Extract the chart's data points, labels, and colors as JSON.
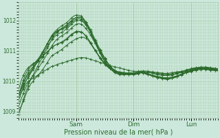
{
  "xlabel": "Pression niveau de la mer( hPa )",
  "bg_color": "#cce8dc",
  "plot_bg_color": "#cce8dc",
  "grid_color": "#aaccaa",
  "line_color": "#2d6b2d",
  "ylim": [
    1008.8,
    1012.6
  ],
  "yticks": [
    1009,
    1010,
    1011,
    1012
  ],
  "x_day_labels": [
    {
      "label": "Sam",
      "x": 24
    },
    {
      "label": "Dim",
      "x": 48
    },
    {
      "label": "Lun",
      "x": 72
    }
  ],
  "n_points": 84,
  "series": [
    [
      1009.5,
      1009.6,
      1009.75,
      1009.9,
      1010.0,
      1010.05,
      1010.1,
      1010.15,
      1010.2,
      1010.25,
      1010.3,
      1010.35,
      1010.4,
      1010.45,
      1010.5,
      1010.52,
      1010.55,
      1010.58,
      1010.6,
      1010.62,
      1010.65,
      1010.68,
      1010.7,
      1010.72,
      1010.75,
      1010.77,
      1010.78,
      1010.78,
      1010.77,
      1010.75,
      1010.73,
      1010.7,
      1010.67,
      1010.65,
      1010.62,
      1010.6,
      1010.58,
      1010.55,
      1010.52,
      1010.5,
      1010.48,
      1010.46,
      1010.44,
      1010.42,
      1010.4,
      1010.38,
      1010.36,
      1010.34,
      1010.33,
      1010.33,
      1010.33,
      1010.34,
      1010.34,
      1010.34,
      1010.33,
      1010.32,
      1010.31,
      1010.3,
      1010.29,
      1010.28,
      1010.27,
      1010.26,
      1010.26,
      1010.27,
      1010.28,
      1010.3,
      1010.31,
      1010.32,
      1010.33,
      1010.35,
      1010.38,
      1010.4,
      1010.42,
      1010.44,
      1010.45,
      1010.46,
      1010.47,
      1010.47,
      1010.47,
      1010.46,
      1010.45,
      1010.44,
      1010.43,
      1010.42
    ],
    [
      1009.0,
      1009.15,
      1009.35,
      1009.55,
      1009.75,
      1009.9,
      1010.0,
      1010.1,
      1010.18,
      1010.28,
      1010.38,
      1010.5,
      1010.62,
      1010.75,
      1010.85,
      1010.9,
      1010.95,
      1011.0,
      1011.05,
      1011.12,
      1011.18,
      1011.25,
      1011.3,
      1011.35,
      1011.4,
      1011.43,
      1011.45,
      1011.45,
      1011.42,
      1011.35,
      1011.25,
      1011.12,
      1011.0,
      1010.88,
      1010.75,
      1010.65,
      1010.55,
      1010.48,
      1010.42,
      1010.38,
      1010.35,
      1010.33,
      1010.31,
      1010.3,
      1010.29,
      1010.28,
      1010.28,
      1010.28,
      1010.28,
      1010.29,
      1010.3,
      1010.31,
      1010.31,
      1010.31,
      1010.3,
      1010.29,
      1010.28,
      1010.27,
      1010.26,
      1010.25,
      1010.24,
      1010.23,
      1010.23,
      1010.24,
      1010.25,
      1010.27,
      1010.28,
      1010.3,
      1010.31,
      1010.33,
      1010.36,
      1010.38,
      1010.4,
      1010.42,
      1010.43,
      1010.44,
      1010.45,
      1010.45,
      1010.45,
      1010.44,
      1010.43,
      1010.42,
      1010.41,
      1010.4
    ],
    [
      1009.5,
      1009.8,
      1010.05,
      1010.25,
      1010.38,
      1010.48,
      1010.55,
      1010.62,
      1010.68,
      1010.75,
      1010.82,
      1010.9,
      1010.98,
      1011.05,
      1011.12,
      1011.18,
      1011.22,
      1011.25,
      1011.28,
      1011.32,
      1011.38,
      1011.45,
      1011.52,
      1011.58,
      1011.62,
      1011.63,
      1011.62,
      1011.58,
      1011.5,
      1011.4,
      1011.28,
      1011.15,
      1011.02,
      1010.9,
      1010.78,
      1010.68,
      1010.58,
      1010.5,
      1010.44,
      1010.38,
      1010.34,
      1010.31,
      1010.29,
      1010.28,
      1010.28,
      1010.28,
      1010.28,
      1010.28,
      1010.28,
      1010.29,
      1010.3,
      1010.31,
      1010.31,
      1010.31,
      1010.3,
      1010.29,
      1010.27,
      1010.25,
      1010.23,
      1010.22,
      1010.21,
      1010.2,
      1010.2,
      1010.21,
      1010.22,
      1010.24,
      1010.26,
      1010.28,
      1010.3,
      1010.32,
      1010.35,
      1010.37,
      1010.39,
      1010.41,
      1010.42,
      1010.43,
      1010.44,
      1010.44,
      1010.44,
      1010.43,
      1010.42,
      1010.41,
      1010.4,
      1010.39
    ],
    [
      1009.7,
      1010.0,
      1010.2,
      1010.35,
      1010.45,
      1010.52,
      1010.58,
      1010.64,
      1010.7,
      1010.76,
      1010.83,
      1010.9,
      1010.97,
      1011.05,
      1011.12,
      1011.18,
      1011.22,
      1011.26,
      1011.3,
      1011.35,
      1011.4,
      1011.48,
      1011.55,
      1011.6,
      1011.65,
      1011.65,
      1011.63,
      1011.58,
      1011.5,
      1011.4,
      1011.27,
      1011.14,
      1011.02,
      1010.9,
      1010.78,
      1010.68,
      1010.58,
      1010.5,
      1010.44,
      1010.38,
      1010.34,
      1010.31,
      1010.29,
      1010.27,
      1010.27,
      1010.27,
      1010.27,
      1010.27,
      1010.28,
      1010.29,
      1010.3,
      1010.31,
      1010.3,
      1010.3,
      1010.29,
      1010.28,
      1010.26,
      1010.24,
      1010.22,
      1010.21,
      1010.2,
      1010.19,
      1010.19,
      1010.2,
      1010.21,
      1010.23,
      1010.25,
      1010.27,
      1010.29,
      1010.32,
      1010.34,
      1010.36,
      1010.38,
      1010.4,
      1010.41,
      1010.42,
      1010.43,
      1010.43,
      1010.43,
      1010.42,
      1010.41,
      1010.4,
      1010.39,
      1010.38
    ],
    [
      1009.35,
      1009.6,
      1009.8,
      1010.0,
      1010.15,
      1010.3,
      1010.42,
      1010.55,
      1010.68,
      1010.8,
      1010.95,
      1011.1,
      1011.25,
      1011.38,
      1011.5,
      1011.6,
      1011.65,
      1011.7,
      1011.72,
      1011.75,
      1011.78,
      1011.85,
      1011.93,
      1012.0,
      1012.05,
      1012.08,
      1012.05,
      1011.98,
      1011.88,
      1011.75,
      1011.6,
      1011.42,
      1011.25,
      1011.08,
      1010.92,
      1010.78,
      1010.65,
      1010.55,
      1010.46,
      1010.38,
      1010.32,
      1010.28,
      1010.26,
      1010.25,
      1010.25,
      1010.25,
      1010.25,
      1010.25,
      1010.25,
      1010.26,
      1010.28,
      1010.3,
      1010.28,
      1010.26,
      1010.24,
      1010.22,
      1010.2,
      1010.18,
      1010.16,
      1010.15,
      1010.13,
      1010.12,
      1010.12,
      1010.13,
      1010.14,
      1010.16,
      1010.18,
      1010.21,
      1010.24,
      1010.27,
      1010.3,
      1010.32,
      1010.34,
      1010.37,
      1010.38,
      1010.4,
      1010.41,
      1010.41,
      1010.41,
      1010.4,
      1010.39,
      1010.38,
      1010.37,
      1010.36
    ],
    [
      1008.9,
      1009.15,
      1009.4,
      1009.65,
      1009.85,
      1010.05,
      1010.2,
      1010.35,
      1010.5,
      1010.65,
      1010.8,
      1010.95,
      1011.1,
      1011.25,
      1011.4,
      1011.52,
      1011.6,
      1011.67,
      1011.72,
      1011.77,
      1011.82,
      1011.9,
      1011.98,
      1012.05,
      1012.1,
      1012.12,
      1012.1,
      1012.03,
      1011.92,
      1011.78,
      1011.62,
      1011.45,
      1011.28,
      1011.1,
      1010.93,
      1010.78,
      1010.63,
      1010.52,
      1010.43,
      1010.36,
      1010.3,
      1010.26,
      1010.24,
      1010.23,
      1010.23,
      1010.23,
      1010.23,
      1010.23,
      1010.23,
      1010.24,
      1010.26,
      1010.28,
      1010.27,
      1010.25,
      1010.23,
      1010.21,
      1010.18,
      1010.16,
      1010.14,
      1010.13,
      1010.11,
      1010.1,
      1010.1,
      1010.11,
      1010.12,
      1010.14,
      1010.16,
      1010.19,
      1010.22,
      1010.26,
      1010.29,
      1010.31,
      1010.33,
      1010.36,
      1010.37,
      1010.39,
      1010.4,
      1010.4,
      1010.4,
      1010.39,
      1010.38,
      1010.37,
      1010.36,
      1010.35
    ],
    [
      1009.5,
      1009.7,
      1009.85,
      1010.0,
      1010.12,
      1010.25,
      1010.38,
      1010.52,
      1010.65,
      1010.8,
      1010.95,
      1011.1,
      1011.25,
      1011.4,
      1011.53,
      1011.63,
      1011.7,
      1011.77,
      1011.83,
      1011.88,
      1011.93,
      1012.0,
      1012.08,
      1012.15,
      1012.18,
      1012.18,
      1012.15,
      1012.08,
      1011.96,
      1011.82,
      1011.65,
      1011.47,
      1011.3,
      1011.12,
      1010.95,
      1010.8,
      1010.65,
      1010.53,
      1010.43,
      1010.35,
      1010.29,
      1010.25,
      1010.23,
      1010.22,
      1010.22,
      1010.22,
      1010.22,
      1010.22,
      1010.22,
      1010.23,
      1010.25,
      1010.28,
      1010.26,
      1010.24,
      1010.22,
      1010.19,
      1010.17,
      1010.14,
      1010.12,
      1010.11,
      1010.09,
      1010.08,
      1010.08,
      1010.09,
      1010.1,
      1010.12,
      1010.15,
      1010.18,
      1010.21,
      1010.25,
      1010.28,
      1010.3,
      1010.32,
      1010.35,
      1010.37,
      1010.38,
      1010.39,
      1010.39,
      1010.39,
      1010.38,
      1010.37,
      1010.36,
      1010.35,
      1010.34
    ],
    [
      1009.15,
      1009.4,
      1009.6,
      1009.8,
      1009.95,
      1010.08,
      1010.18,
      1010.28,
      1010.4,
      1010.53,
      1010.65,
      1010.78,
      1010.92,
      1011.05,
      1011.18,
      1011.3,
      1011.38,
      1011.45,
      1011.5,
      1011.55,
      1011.6,
      1011.67,
      1011.75,
      1011.82,
      1011.88,
      1011.9,
      1011.88,
      1011.83,
      1011.75,
      1011.65,
      1011.52,
      1011.38,
      1011.25,
      1011.1,
      1010.97,
      1010.85,
      1010.72,
      1010.6,
      1010.5,
      1010.42,
      1010.35,
      1010.3,
      1010.27,
      1010.26,
      1010.25,
      1010.25,
      1010.25,
      1010.25,
      1010.25,
      1010.26,
      1010.28,
      1010.3,
      1010.28,
      1010.26,
      1010.24,
      1010.22,
      1010.19,
      1010.16,
      1010.14,
      1010.12,
      1010.1,
      1010.09,
      1010.09,
      1010.1,
      1010.12,
      1010.14,
      1010.17,
      1010.2,
      1010.24,
      1010.28,
      1010.31,
      1010.33,
      1010.35,
      1010.38,
      1010.39,
      1010.41,
      1010.42,
      1010.42,
      1010.42,
      1010.41,
      1010.4,
      1010.39,
      1010.38,
      1010.37
    ],
    [
      1009.5,
      1009.75,
      1009.95,
      1010.15,
      1010.28,
      1010.38,
      1010.48,
      1010.6,
      1010.72,
      1010.84,
      1010.97,
      1011.1,
      1011.23,
      1011.35,
      1011.47,
      1011.57,
      1011.64,
      1011.7,
      1011.75,
      1011.8,
      1011.86,
      1011.93,
      1012.0,
      1012.06,
      1012.1,
      1012.12,
      1012.1,
      1012.05,
      1011.96,
      1011.84,
      1011.7,
      1011.53,
      1011.37,
      1011.2,
      1011.05,
      1010.9,
      1010.76,
      1010.63,
      1010.52,
      1010.43,
      1010.36,
      1010.31,
      1010.28,
      1010.27,
      1010.26,
      1010.25,
      1010.25,
      1010.25,
      1010.25,
      1010.27,
      1010.29,
      1010.32,
      1010.3,
      1010.27,
      1010.25,
      1010.22,
      1010.2,
      1010.17,
      1010.14,
      1010.12,
      1010.1,
      1010.08,
      1010.08,
      1010.09,
      1010.1,
      1010.13,
      1010.16,
      1010.2,
      1010.24,
      1010.28,
      1010.31,
      1010.33,
      1010.35,
      1010.38,
      1010.4,
      1010.42,
      1010.43,
      1010.43,
      1010.43,
      1010.42,
      1010.41,
      1010.4,
      1010.39,
      1010.38
    ],
    [
      1009.5,
      1009.73,
      1009.92,
      1010.1,
      1010.22,
      1010.32,
      1010.42,
      1010.54,
      1010.66,
      1010.78,
      1010.9,
      1011.03,
      1011.15,
      1011.27,
      1011.38,
      1011.47,
      1011.53,
      1011.58,
      1011.62,
      1011.67,
      1011.73,
      1011.8,
      1011.88,
      1011.95,
      1012.0,
      1012.02,
      1012.0,
      1011.95,
      1011.87,
      1011.76,
      1011.62,
      1011.47,
      1011.32,
      1011.17,
      1011.02,
      1010.88,
      1010.75,
      1010.63,
      1010.52,
      1010.44,
      1010.37,
      1010.32,
      1010.29,
      1010.27,
      1010.26,
      1010.25,
      1010.25,
      1010.25,
      1010.25,
      1010.27,
      1010.29,
      1010.32,
      1010.3,
      1010.27,
      1010.24,
      1010.21,
      1010.18,
      1010.15,
      1010.13,
      1010.11,
      1010.09,
      1010.07,
      1010.07,
      1010.08,
      1010.1,
      1010.12,
      1010.15,
      1010.19,
      1010.23,
      1010.27,
      1010.3,
      1010.32,
      1010.34,
      1010.37,
      1010.39,
      1010.41,
      1010.42,
      1010.42,
      1010.42,
      1010.41,
      1010.4,
      1010.39,
      1010.38,
      1010.37
    ]
  ]
}
